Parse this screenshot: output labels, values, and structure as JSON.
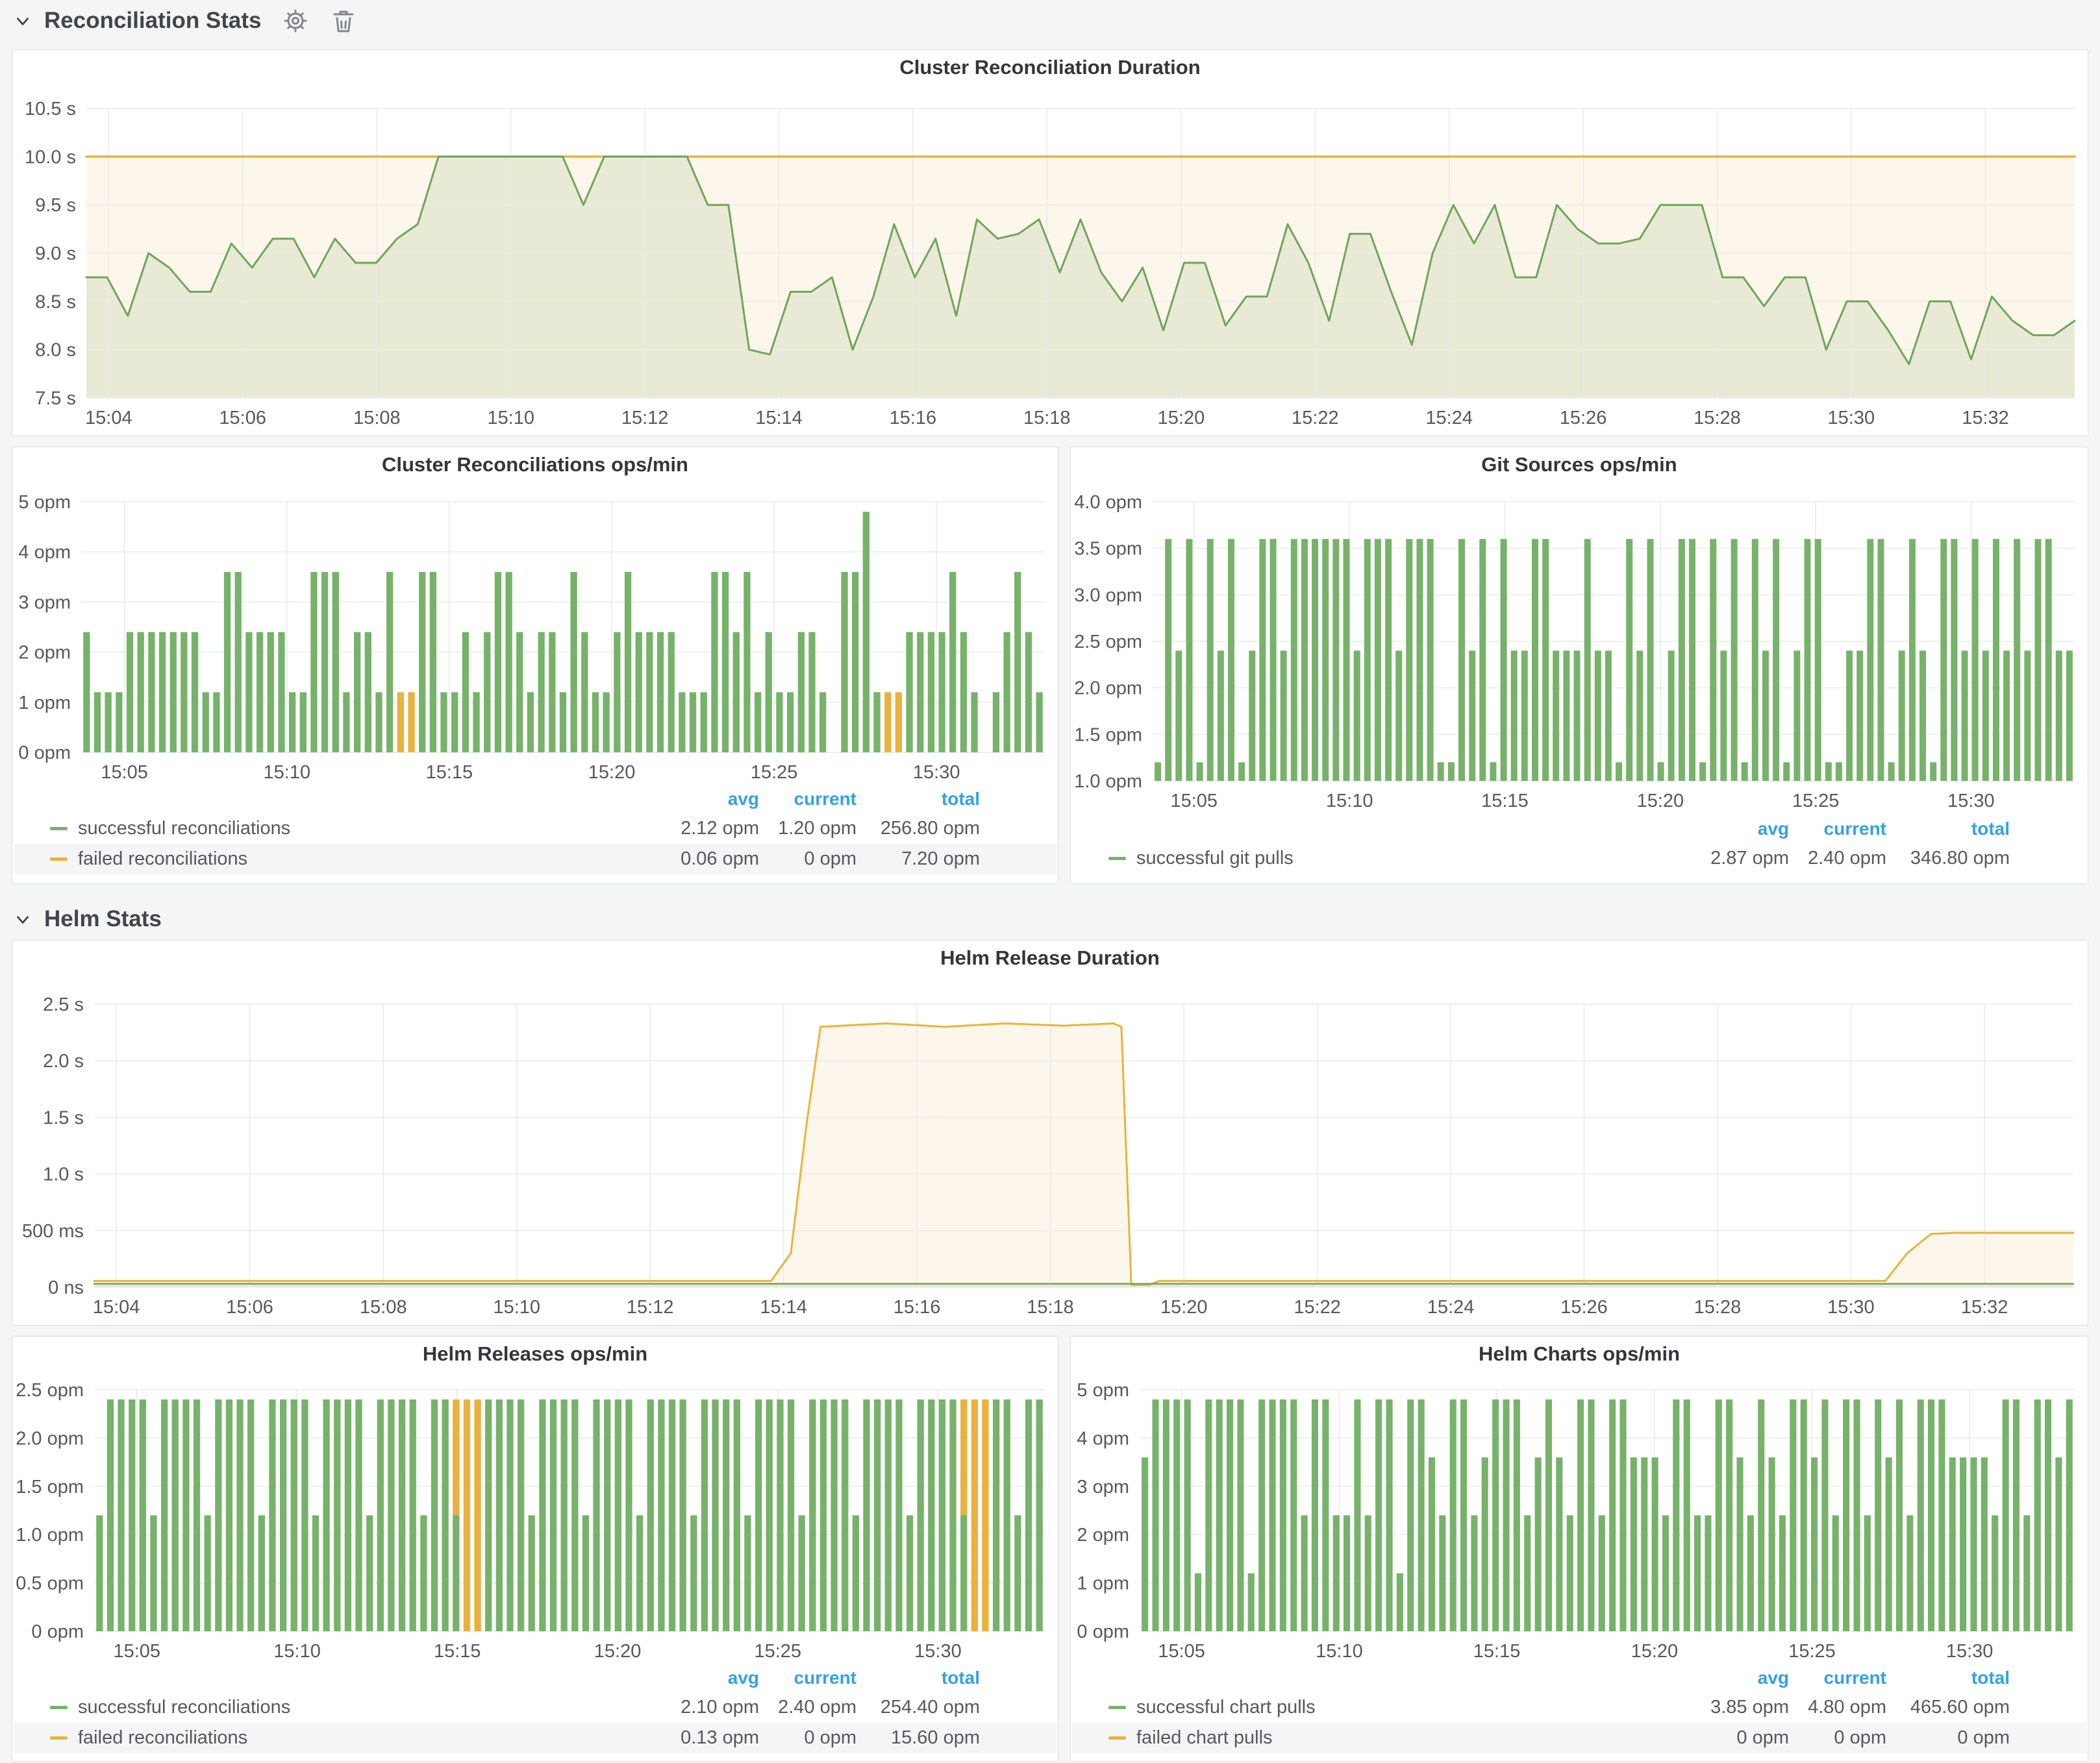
{
  "colors": {
    "green": "#77b26a",
    "orange": "#eab13c",
    "threshold_line": "#e9b43a",
    "legend_header_blue": "#35a1e5",
    "panel_bg": "#ffffff",
    "page_bg": "#f4f5f5"
  },
  "sections": [
    {
      "title": "Reconciliation Stats",
      "icons": [
        "chevron-down",
        "gear",
        "trash"
      ]
    },
    {
      "title": "Helm Stats",
      "icons": [
        "chevron-down"
      ]
    }
  ],
  "panels": [
    {
      "title": "Cluster Reconciliation Duration",
      "legend": null
    },
    {
      "title": "Cluster Reconciliations ops/min",
      "legend": {
        "headers": [
          "avg",
          "current",
          "total"
        ],
        "rows": [
          {
            "label": "successful reconciliations",
            "color": "#77b26a",
            "values": [
              "2.12 opm",
              "1.20 opm",
              "256.80 opm"
            ]
          },
          {
            "label": "failed reconciliations",
            "color": "#eab13c",
            "values": [
              "0.06 opm",
              "0 opm",
              "7.20 opm"
            ]
          }
        ]
      }
    },
    {
      "title": "Git Sources ops/min",
      "legend": {
        "headers": [
          "avg",
          "current",
          "total"
        ],
        "rows": [
          {
            "label": "successful git pulls",
            "color": "#77b26a",
            "values": [
              "2.87 opm",
              "2.40 opm",
              "346.80 opm"
            ]
          }
        ]
      }
    },
    {
      "title": "Helm Release Duration",
      "legend": null
    },
    {
      "title": "Helm Releases ops/min",
      "legend": {
        "headers": [
          "avg",
          "current",
          "total"
        ],
        "rows": [
          {
            "label": "successful reconciliations",
            "color": "#77b26a",
            "values": [
              "2.10 opm",
              "2.40 opm",
              "254.40 opm"
            ]
          },
          {
            "label": "failed reconciliations",
            "color": "#eab13c",
            "values": [
              "0.13 opm",
              "0 opm",
              "15.60 opm"
            ]
          }
        ]
      }
    },
    {
      "title": "Helm Charts ops/min",
      "legend": {
        "headers": [
          "avg",
          "current",
          "total"
        ],
        "rows": [
          {
            "label": "successful chart pulls",
            "color": "#77b26a",
            "values": [
              "3.85 opm",
              "4.80 opm",
              "465.60 opm"
            ]
          },
          {
            "label": "failed chart pulls",
            "color": "#eab13c",
            "values": [
              "0 opm",
              "0 opm",
              "0 opm"
            ]
          }
        ]
      }
    }
  ],
  "chart_data": [
    {
      "type": "line",
      "title": "Cluster Reconciliation Duration",
      "ylim": [
        7.5,
        10.5
      ],
      "margins": [
        108,
        14,
        36,
        52
      ],
      "yticks": [
        {
          "v": 7.5,
          "l": "7.5 s"
        },
        {
          "v": 8,
          "l": "8.0 s"
        },
        {
          "v": 8.5,
          "l": "8.5 s"
        },
        {
          "v": 9,
          "l": "9.0 s"
        },
        {
          "v": 9.5,
          "l": "9.5 s"
        },
        {
          "v": 10,
          "l": "10.0 s"
        },
        {
          "v": 10.5,
          "l": "10.5 s"
        }
      ],
      "xticks": [
        {
          "pos": 0.0112,
          "l": "15:04"
        },
        {
          "pos": 0.0786,
          "l": "15:06"
        },
        {
          "pos": 0.1461,
          "l": "15:08"
        },
        {
          "pos": 0.2135,
          "l": "15:10"
        },
        {
          "pos": 0.2809,
          "l": "15:12"
        },
        {
          "pos": 0.3483,
          "l": "15:14"
        },
        {
          "pos": 0.4157,
          "l": "15:16"
        },
        {
          "pos": 0.4831,
          "l": "15:18"
        },
        {
          "pos": 0.5506,
          "l": "15:20"
        },
        {
          "pos": 0.618,
          "l": "15:22"
        },
        {
          "pos": 0.6854,
          "l": "15:24"
        },
        {
          "pos": 0.7528,
          "l": "15:26"
        },
        {
          "pos": 0.8202,
          "l": "15:28"
        },
        {
          "pos": 0.8876,
          "l": "15:30"
        },
        {
          "pos": 0.9551,
          "l": "15:32"
        }
      ],
      "series": [
        {
          "name": "threshold 10s",
          "color": "#e9b43a",
          "w": 3.5,
          "fill": "rgba(233,180,58,0.10)",
          "points": [
            [
              0,
              10
            ],
            [
              1,
              10
            ]
          ]
        },
        {
          "name": "reconciliation duration",
          "color": "#6fa65c",
          "w": 3,
          "fill": "rgba(130,170,100,0.16)",
          "values": [
            8.75,
            8.75,
            8.35,
            9,
            8.85,
            8.6,
            8.6,
            9.1,
            8.85,
            9.15,
            9.15,
            8.75,
            9.15,
            8.9,
            8.9,
            9.15,
            9.3,
            10,
            10,
            10,
            10,
            10,
            10,
            10,
            9.5,
            10,
            10,
            10,
            10,
            10,
            9.5,
            9.5,
            8,
            7.95,
            8.6,
            8.6,
            8.75,
            8,
            8.55,
            9.3,
            8.75,
            9.15,
            8.35,
            9.35,
            9.15,
            9.2,
            9.35,
            8.8,
            9.35,
            8.8,
            8.5,
            8.85,
            8.2,
            8.9,
            8.9,
            8.25,
            8.55,
            8.55,
            9.3,
            8.9,
            8.3,
            9.2,
            9.2,
            8.6,
            8.05,
            9,
            9.5,
            9.1,
            9.5,
            8.75,
            8.75,
            9.5,
            9.25,
            9.1,
            9.1,
            9.15,
            9.5,
            9.5,
            9.5,
            8.75,
            8.75,
            8.45,
            8.75,
            8.75,
            8,
            8.5,
            8.5,
            8.2,
            7.85,
            8.5,
            8.5,
            7.9,
            8.55,
            8.3,
            8.15,
            8.15,
            8.3
          ]
        }
      ]
    },
    {
      "type": "bar",
      "title": "Cluster Reconciliations ops/min",
      "ylim": [
        0,
        5
      ],
      "margins": [
        100,
        14,
        30,
        52
      ],
      "yticks": [
        {
          "v": 0,
          "l": "0 opm"
        },
        {
          "v": 1,
          "l": "1 opm"
        },
        {
          "v": 2,
          "l": "2 opm"
        },
        {
          "v": 3,
          "l": "3 opm"
        },
        {
          "v": 4,
          "l": "4 opm"
        },
        {
          "v": 5,
          "l": "5 opm"
        }
      ],
      "xticks": [
        {
          "pos": 0.0449,
          "l": "15:05"
        },
        {
          "pos": 0.2135,
          "l": "15:10"
        },
        {
          "pos": 0.382,
          "l": "15:15"
        },
        {
          "pos": 0.5506,
          "l": "15:20"
        },
        {
          "pos": 0.7191,
          "l": "15:25"
        },
        {
          "pos": 0.8876,
          "l": "15:30"
        }
      ],
      "bars": [
        2.4,
        1.2,
        1.2,
        1.2,
        2.4,
        2.4,
        2.4,
        2.4,
        2.4,
        2.4,
        2.4,
        1.2,
        1.2,
        3.6,
        3.6,
        2.4,
        2.4,
        2.4,
        2.4,
        1.2,
        1.2,
        3.6,
        3.6,
        3.6,
        1.2,
        2.4,
        2.4,
        1.2,
        3.6,
        {
          "o": 1.2
        },
        {
          "o": 1.2
        },
        3.6,
        3.6,
        1.2,
        1.2,
        2.4,
        1.2,
        2.4,
        3.6,
        3.6,
        2.4,
        1.2,
        2.4,
        2.4,
        1.2,
        3.6,
        2.4,
        1.2,
        1.2,
        2.4,
        3.6,
        2.4,
        2.4,
        2.4,
        2.4,
        1.2,
        1.2,
        1.2,
        3.6,
        3.6,
        2.4,
        3.6,
        1.2,
        2.4,
        1.2,
        1.2,
        2.4,
        2.4,
        1.2,
        0,
        3.6,
        3.6,
        4.8,
        1.2,
        {
          "o": 1.2
        },
        {
          "o": 1.2
        },
        2.4,
        2.4,
        2.4,
        2.4,
        3.6,
        2.4,
        1.2,
        0,
        1.2,
        2.4,
        3.6,
        2.4,
        1.2
      ]
    },
    {
      "type": "bar",
      "title": "Git Sources ops/min",
      "ylim": [
        1,
        4
      ],
      "margins": [
        120,
        14,
        30,
        52
      ],
      "yticks": [
        {
          "v": 1,
          "l": "1.0 opm"
        },
        {
          "v": 1.5,
          "l": "1.5 opm"
        },
        {
          "v": 2,
          "l": "2.0 opm"
        },
        {
          "v": 2.5,
          "l": "2.5 opm"
        },
        {
          "v": 3,
          "l": "3.0 opm"
        },
        {
          "v": 3.5,
          "l": "3.5 opm"
        },
        {
          "v": 4,
          "l": "4.0 opm"
        }
      ],
      "xticks": [
        {
          "pos": 0.0449,
          "l": "15:05"
        },
        {
          "pos": 0.2135,
          "l": "15:10"
        },
        {
          "pos": 0.382,
          "l": "15:15"
        },
        {
          "pos": 0.5506,
          "l": "15:20"
        },
        {
          "pos": 0.7191,
          "l": "15:25"
        },
        {
          "pos": 0.8876,
          "l": "15:30"
        }
      ],
      "bars": [
        1.2,
        3.6,
        2.4,
        3.6,
        1.2,
        3.6,
        2.4,
        3.6,
        1.2,
        2.4,
        3.6,
        3.6,
        2.4,
        3.6,
        3.6,
        3.6,
        3.6,
        3.6,
        3.6,
        2.4,
        3.6,
        3.6,
        3.6,
        2.4,
        3.6,
        3.6,
        3.6,
        1.2,
        1.2,
        3.6,
        2.4,
        3.6,
        1.2,
        3.6,
        2.4,
        2.4,
        3.6,
        3.6,
        2.4,
        2.4,
        2.4,
        3.6,
        2.4,
        2.4,
        1.2,
        3.6,
        2.4,
        3.6,
        1.2,
        2.4,
        3.6,
        3.6,
        1.2,
        3.6,
        2.4,
        3.6,
        1.2,
        3.6,
        2.4,
        3.6,
        1.2,
        2.4,
        3.6,
        3.6,
        1.2,
        1.2,
        2.4,
        2.4,
        3.6,
        3.6,
        1.2,
        2.4,
        3.6,
        2.4,
        1.2,
        3.6,
        3.6,
        2.4,
        3.6,
        2.4,
        3.6,
        2.4,
        3.6,
        2.4,
        3.6,
        3.6,
        2.4,
        2.4
      ]
    },
    {
      "type": "line",
      "title": "Helm Release Duration",
      "ylim": [
        0,
        2.5
      ],
      "margins": [
        120,
        16,
        44,
        52
      ],
      "yticks": [
        {
          "v": 0,
          "l": "0 ns"
        },
        {
          "v": 0.5,
          "l": "500 ms"
        },
        {
          "v": 1,
          "l": "1.0 s"
        },
        {
          "v": 1.5,
          "l": "1.5 s"
        },
        {
          "v": 2,
          "l": "2.0 s"
        },
        {
          "v": 2.5,
          "l": "2.5 s"
        }
      ],
      "xticks": [
        {
          "pos": 0.0112,
          "l": "15:04"
        },
        {
          "pos": 0.0786,
          "l": "15:06"
        },
        {
          "pos": 0.1461,
          "l": "15:08"
        },
        {
          "pos": 0.2135,
          "l": "15:10"
        },
        {
          "pos": 0.2809,
          "l": "15:12"
        },
        {
          "pos": 0.3483,
          "l": "15:14"
        },
        {
          "pos": 0.4157,
          "l": "15:16"
        },
        {
          "pos": 0.4831,
          "l": "15:18"
        },
        {
          "pos": 0.5506,
          "l": "15:20"
        },
        {
          "pos": 0.618,
          "l": "15:22"
        },
        {
          "pos": 0.6854,
          "l": "15:24"
        },
        {
          "pos": 0.7528,
          "l": "15:26"
        },
        {
          "pos": 0.8202,
          "l": "15:28"
        },
        {
          "pos": 0.8876,
          "l": "15:30"
        },
        {
          "pos": 0.9551,
          "l": "15:32"
        }
      ],
      "series": [
        {
          "name": "failed release duration",
          "color": "#e9b43a",
          "w": 3,
          "fill": "rgba(233,180,58,0.10)",
          "points": [
            [
              0,
              0.055
            ],
            [
              0.342,
              0.055
            ],
            [
              0.352,
              0.3
            ],
            [
              0.36,
              1.45
            ],
            [
              0.367,
              2.3
            ],
            [
              0.4,
              2.33
            ],
            [
              0.43,
              2.3
            ],
            [
              0.46,
              2.33
            ],
            [
              0.49,
              2.31
            ],
            [
              0.515,
              2.33
            ],
            [
              0.519,
              2.3
            ],
            [
              0.524,
              0.02
            ],
            [
              0.533,
              0.02
            ],
            [
              0.538,
              0.055
            ],
            [
              0.905,
              0.055
            ],
            [
              0.916,
              0.3
            ],
            [
              0.928,
              0.47
            ],
            [
              0.94,
              0.48
            ],
            [
              1,
              0.48
            ]
          ]
        },
        {
          "name": "release duration",
          "color": "#6fa65c",
          "w": 2.5,
          "fill": "rgba(130,170,100,0.16)",
          "points": [
            [
              0,
              0.03
            ],
            [
              1,
              0.03
            ]
          ]
        }
      ]
    },
    {
      "type": "bar",
      "title": "Helm Releases ops/min",
      "ylim": [
        0,
        2.5
      ],
      "margins": [
        120,
        14,
        28,
        52
      ],
      "yticks": [
        {
          "v": 0,
          "l": "0 opm"
        },
        {
          "v": 0.5,
          "l": "0.5 opm"
        },
        {
          "v": 1,
          "l": "1.0 opm"
        },
        {
          "v": 1.5,
          "l": "1.5 opm"
        },
        {
          "v": 2,
          "l": "2.0 opm"
        },
        {
          "v": 2.5,
          "l": "2.5 opm"
        }
      ],
      "xticks": [
        {
          "pos": 0.0449,
          "l": "15:05"
        },
        {
          "pos": 0.2135,
          "l": "15:10"
        },
        {
          "pos": 0.382,
          "l": "15:15"
        },
        {
          "pos": 0.5506,
          "l": "15:20"
        },
        {
          "pos": 0.7191,
          "l": "15:25"
        },
        {
          "pos": 0.8876,
          "l": "15:30"
        }
      ],
      "bars": [
        1.2,
        2.4,
        2.4,
        2.4,
        2.4,
        1.2,
        2.4,
        2.4,
        2.4,
        2.4,
        1.2,
        2.4,
        2.4,
        2.4,
        2.4,
        1.2,
        2.4,
        2.4,
        2.4,
        2.4,
        1.2,
        2.4,
        2.4,
        2.4,
        2.4,
        1.2,
        2.4,
        2.4,
        2.4,
        2.4,
        1.2,
        2.4,
        2.4,
        {
          "g": 1.2,
          "o": 1.2
        },
        {
          "o": 2.4
        },
        {
          "o": 2.4
        },
        2.4,
        2.4,
        2.4,
        2.4,
        1.2,
        2.4,
        2.4,
        2.4,
        2.4,
        1.2,
        2.4,
        2.4,
        2.4,
        2.4,
        1.2,
        2.4,
        2.4,
        2.4,
        2.4,
        1.2,
        2.4,
        2.4,
        2.4,
        2.4,
        1.2,
        2.4,
        2.4,
        2.4,
        2.4,
        1.2,
        2.4,
        2.4,
        2.4,
        2.4,
        1.2,
        2.4,
        2.4,
        2.4,
        2.4,
        1.2,
        2.4,
        2.4,
        2.4,
        2.4,
        {
          "g": 1.2,
          "o": 1.2
        },
        {
          "o": 2.4
        },
        {
          "o": 2.4
        },
        2.4,
        2.4,
        1.2,
        2.4,
        2.4
      ]
    },
    {
      "type": "bar",
      "title": "Helm Charts ops/min",
      "ylim": [
        0,
        5
      ],
      "margins": [
        100,
        14,
        28,
        52
      ],
      "yticks": [
        {
          "v": 0,
          "l": "0 opm"
        },
        {
          "v": 1,
          "l": "1 opm"
        },
        {
          "v": 2,
          "l": "2 opm"
        },
        {
          "v": 3,
          "l": "3 opm"
        },
        {
          "v": 4,
          "l": "4 opm"
        },
        {
          "v": 5,
          "l": "5 opm"
        }
      ],
      "xticks": [
        {
          "pos": 0.0449,
          "l": "15:05"
        },
        {
          "pos": 0.2135,
          "l": "15:10"
        },
        {
          "pos": 0.382,
          "l": "15:15"
        },
        {
          "pos": 0.5506,
          "l": "15:20"
        },
        {
          "pos": 0.7191,
          "l": "15:25"
        },
        {
          "pos": 0.8876,
          "l": "15:30"
        }
      ],
      "bars": [
        3.6,
        4.8,
        4.8,
        4.8,
        4.8,
        1.2,
        4.8,
        4.8,
        4.8,
        4.8,
        1.2,
        4.8,
        4.8,
        4.8,
        4.8,
        2.4,
        4.8,
        4.8,
        2.4,
        2.4,
        4.8,
        2.4,
        4.8,
        4.8,
        1.2,
        4.8,
        4.8,
        3.6,
        2.4,
        4.8,
        4.8,
        2.4,
        3.6,
        4.8,
        4.8,
        4.8,
        2.4,
        3.6,
        4.8,
        3.6,
        2.4,
        4.8,
        4.8,
        2.4,
        4.8,
        4.8,
        3.6,
        3.6,
        3.6,
        2.4,
        4.8,
        4.8,
        2.4,
        2.4,
        4.8,
        4.8,
        3.6,
        2.4,
        4.8,
        3.6,
        2.4,
        4.8,
        4.8,
        3.6,
        4.8,
        2.4,
        4.8,
        4.8,
        2.4,
        4.8,
        3.6,
        4.8,
        2.4,
        4.8,
        4.8,
        4.8,
        3.6,
        3.6,
        3.6,
        3.6,
        2.4,
        4.8,
        4.8,
        2.4,
        4.8,
        4.8,
        3.6,
        4.8
      ]
    }
  ]
}
